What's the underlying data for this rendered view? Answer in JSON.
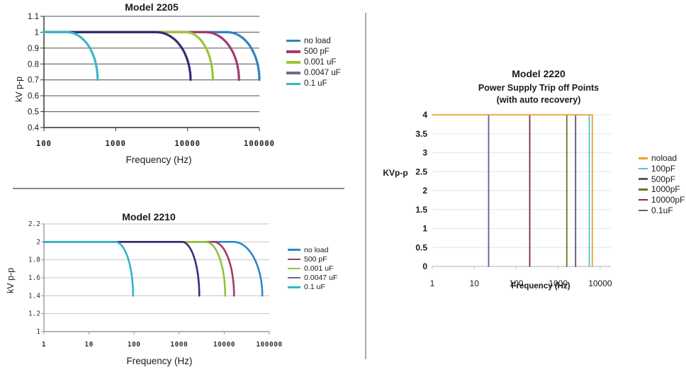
{
  "chart_data": [
    {
      "id": "model-2205",
      "type": "line",
      "title": "Model 2205",
      "xlabel": "Frequency (Hz)",
      "ylabel": "kV p-p",
      "x_scale": "log",
      "grid": true,
      "legend_position": "right",
      "xlim": [
        100,
        100000
      ],
      "ylim": [
        0.4,
        1.1
      ],
      "x_ticks": [
        {
          "v": 100,
          "label": "100"
        },
        {
          "v": 1000,
          "label": "1000"
        },
        {
          "v": 10000,
          "label": "10000"
        },
        {
          "v": 100000,
          "label": "100000"
        }
      ],
      "y_ticks": [
        {
          "v": 1.1,
          "label": "1.1"
        },
        {
          "v": 1.0,
          "label": "1"
        },
        {
          "v": 0.9,
          "label": "0.9"
        },
        {
          "v": 0.8,
          "label": "0.8"
        },
        {
          "v": 0.7,
          "label": "0.7"
        },
        {
          "v": 0.6,
          "label": "0.6"
        },
        {
          "v": 0.5,
          "label": "0.5"
        },
        {
          "v": 0.4,
          "label": "0.4"
        }
      ],
      "series": [
        {
          "name": "no load",
          "color": "#2b84c6",
          "flat_kv": 1.0,
          "rolloff_start_hz": 36000,
          "cutoff_hz": 100000,
          "cutoff_kv": 0.7
        },
        {
          "name": "500 pF",
          "color": "#a23a6c",
          "flat_kv": 1.0,
          "rolloff_start_hz": 18000,
          "cutoff_hz": 52000,
          "cutoff_kv": 0.7
        },
        {
          "name": "0.001 uF",
          "color": "#9cc43a",
          "flat_kv": 1.0,
          "rolloff_start_hz": 9500,
          "cutoff_hz": 22500,
          "cutoff_kv": 0.7
        },
        {
          "name": "0.0047 uF",
          "color": "#332c78",
          "legend_color": "#6b6b8f",
          "flat_kv": 1.0,
          "rolloff_start_hz": 3700,
          "cutoff_hz": 11000,
          "cutoff_kv": 0.7
        },
        {
          "name": "0.1 uF",
          "color": "#3ab5cb",
          "flat_kv": 1.0,
          "rolloff_start_hz": 210,
          "cutoff_hz": 560,
          "cutoff_kv": 0.7
        }
      ]
    },
    {
      "id": "model-2210",
      "type": "line",
      "title": "Model 2210",
      "xlabel": "Frequency (Hz)",
      "ylabel": "kV p-p",
      "x_scale": "log",
      "grid": true,
      "legend_position": "right",
      "xlim": [
        1,
        100000
      ],
      "ylim": [
        1,
        2.2
      ],
      "x_ticks": [
        {
          "v": 1,
          "label": "1"
        },
        {
          "v": 10,
          "label": "10"
        },
        {
          "v": 100,
          "label": "100"
        },
        {
          "v": 1000,
          "label": "1000"
        },
        {
          "v": 10000,
          "label": "10000"
        },
        {
          "v": 100000,
          "label": "100000"
        }
      ],
      "y_ticks": [
        {
          "v": 2.2,
          "label": "2.2"
        },
        {
          "v": 2.0,
          "label": "2"
        },
        {
          "v": 1.8,
          "label": "1.8"
        },
        {
          "v": 1.6,
          "label": "1.6"
        },
        {
          "v": 1.4,
          "label": "1.4"
        },
        {
          "v": 1.2,
          "label": "1.2"
        },
        {
          "v": 1.0,
          "label": "1"
        }
      ],
      "series": [
        {
          "name": "no load",
          "color": "#2e87c8",
          "flat_kv": 2.0,
          "rolloff_start_hz": 16000,
          "cutoff_hz": 70000,
          "cutoff_kv": 1.4
        },
        {
          "name": "500 pF",
          "color": "#a03a6a",
          "flat_kv": 2.0,
          "rolloff_start_hz": 5800,
          "cutoff_hz": 16500,
          "cutoff_kv": 1.4
        },
        {
          "name": "0.001 uF",
          "color": "#93c23c",
          "flat_kv": 2.0,
          "rolloff_start_hz": 3900,
          "cutoff_hz": 10500,
          "cutoff_kv": 1.4
        },
        {
          "name": "0.0047 uF",
          "color": "#40297c",
          "legend_color": "#6b6b8f",
          "flat_kv": 2.0,
          "rolloff_start_hz": 1150,
          "cutoff_hz": 2800,
          "cutoff_kv": 1.4
        },
        {
          "name": "0.1 uF",
          "color": "#35b4c9",
          "flat_kv": 2.0,
          "rolloff_start_hz": 38,
          "cutoff_hz": 95,
          "cutoff_kv": 1.4
        }
      ]
    },
    {
      "id": "model-2220",
      "type": "step",
      "title": "Model 2220",
      "subtitle": "Power Supply Trip off Points",
      "subtitle2": "(with auto recovery)",
      "xlabel": "Frequency (Hz)",
      "ylabel": "KVp-p",
      "x_scale": "log",
      "grid": true,
      "legend_position": "right",
      "xlim": [
        1,
        10000
      ],
      "xlim_display": [
        1,
        18000
      ],
      "ylim": [
        0,
        4
      ],
      "x_ticks": [
        {
          "v": 1,
          "label": "1"
        },
        {
          "v": 10,
          "label": "10"
        },
        {
          "v": 100,
          "label": "100"
        },
        {
          "v": 1000,
          "label": "1000"
        },
        {
          "v": 10000,
          "label": "10000"
        }
      ],
      "y_ticks": [
        {
          "v": 4,
          "label": "4"
        },
        {
          "v": 3.5,
          "label": "3.5"
        },
        {
          "v": 3,
          "label": "3"
        },
        {
          "v": 2.5,
          "label": "2.5"
        },
        {
          "v": 2,
          "label": "2"
        },
        {
          "v": 1.5,
          "label": "1.5"
        },
        {
          "v": 1,
          "label": "1"
        },
        {
          "v": 0.5,
          "label": "0.5"
        },
        {
          "v": 0,
          "label": "0"
        }
      ],
      "series": [
        {
          "name": "noload",
          "color": "#f2a127",
          "level_kv": 4,
          "trip_hz": 6500,
          "top_line": true
        },
        {
          "name": "100pF",
          "color": "#49c7d7",
          "level_kv": 4,
          "trip_hz": 5500
        },
        {
          "name": "500pF",
          "color": "#5b5b68",
          "level_kv": 4,
          "trip_hz": 2600
        },
        {
          "name": "1000pF",
          "color": "#74741f",
          "level_kv": 4,
          "trip_hz": 1600
        },
        {
          "name": "10000pF",
          "color": "#7c2b4e",
          "level_kv": 4,
          "trip_hz": 210
        },
        {
          "name": "0.1uF",
          "color": "#62628c",
          "level_kv": 4,
          "trip_hz": 22
        }
      ]
    }
  ]
}
